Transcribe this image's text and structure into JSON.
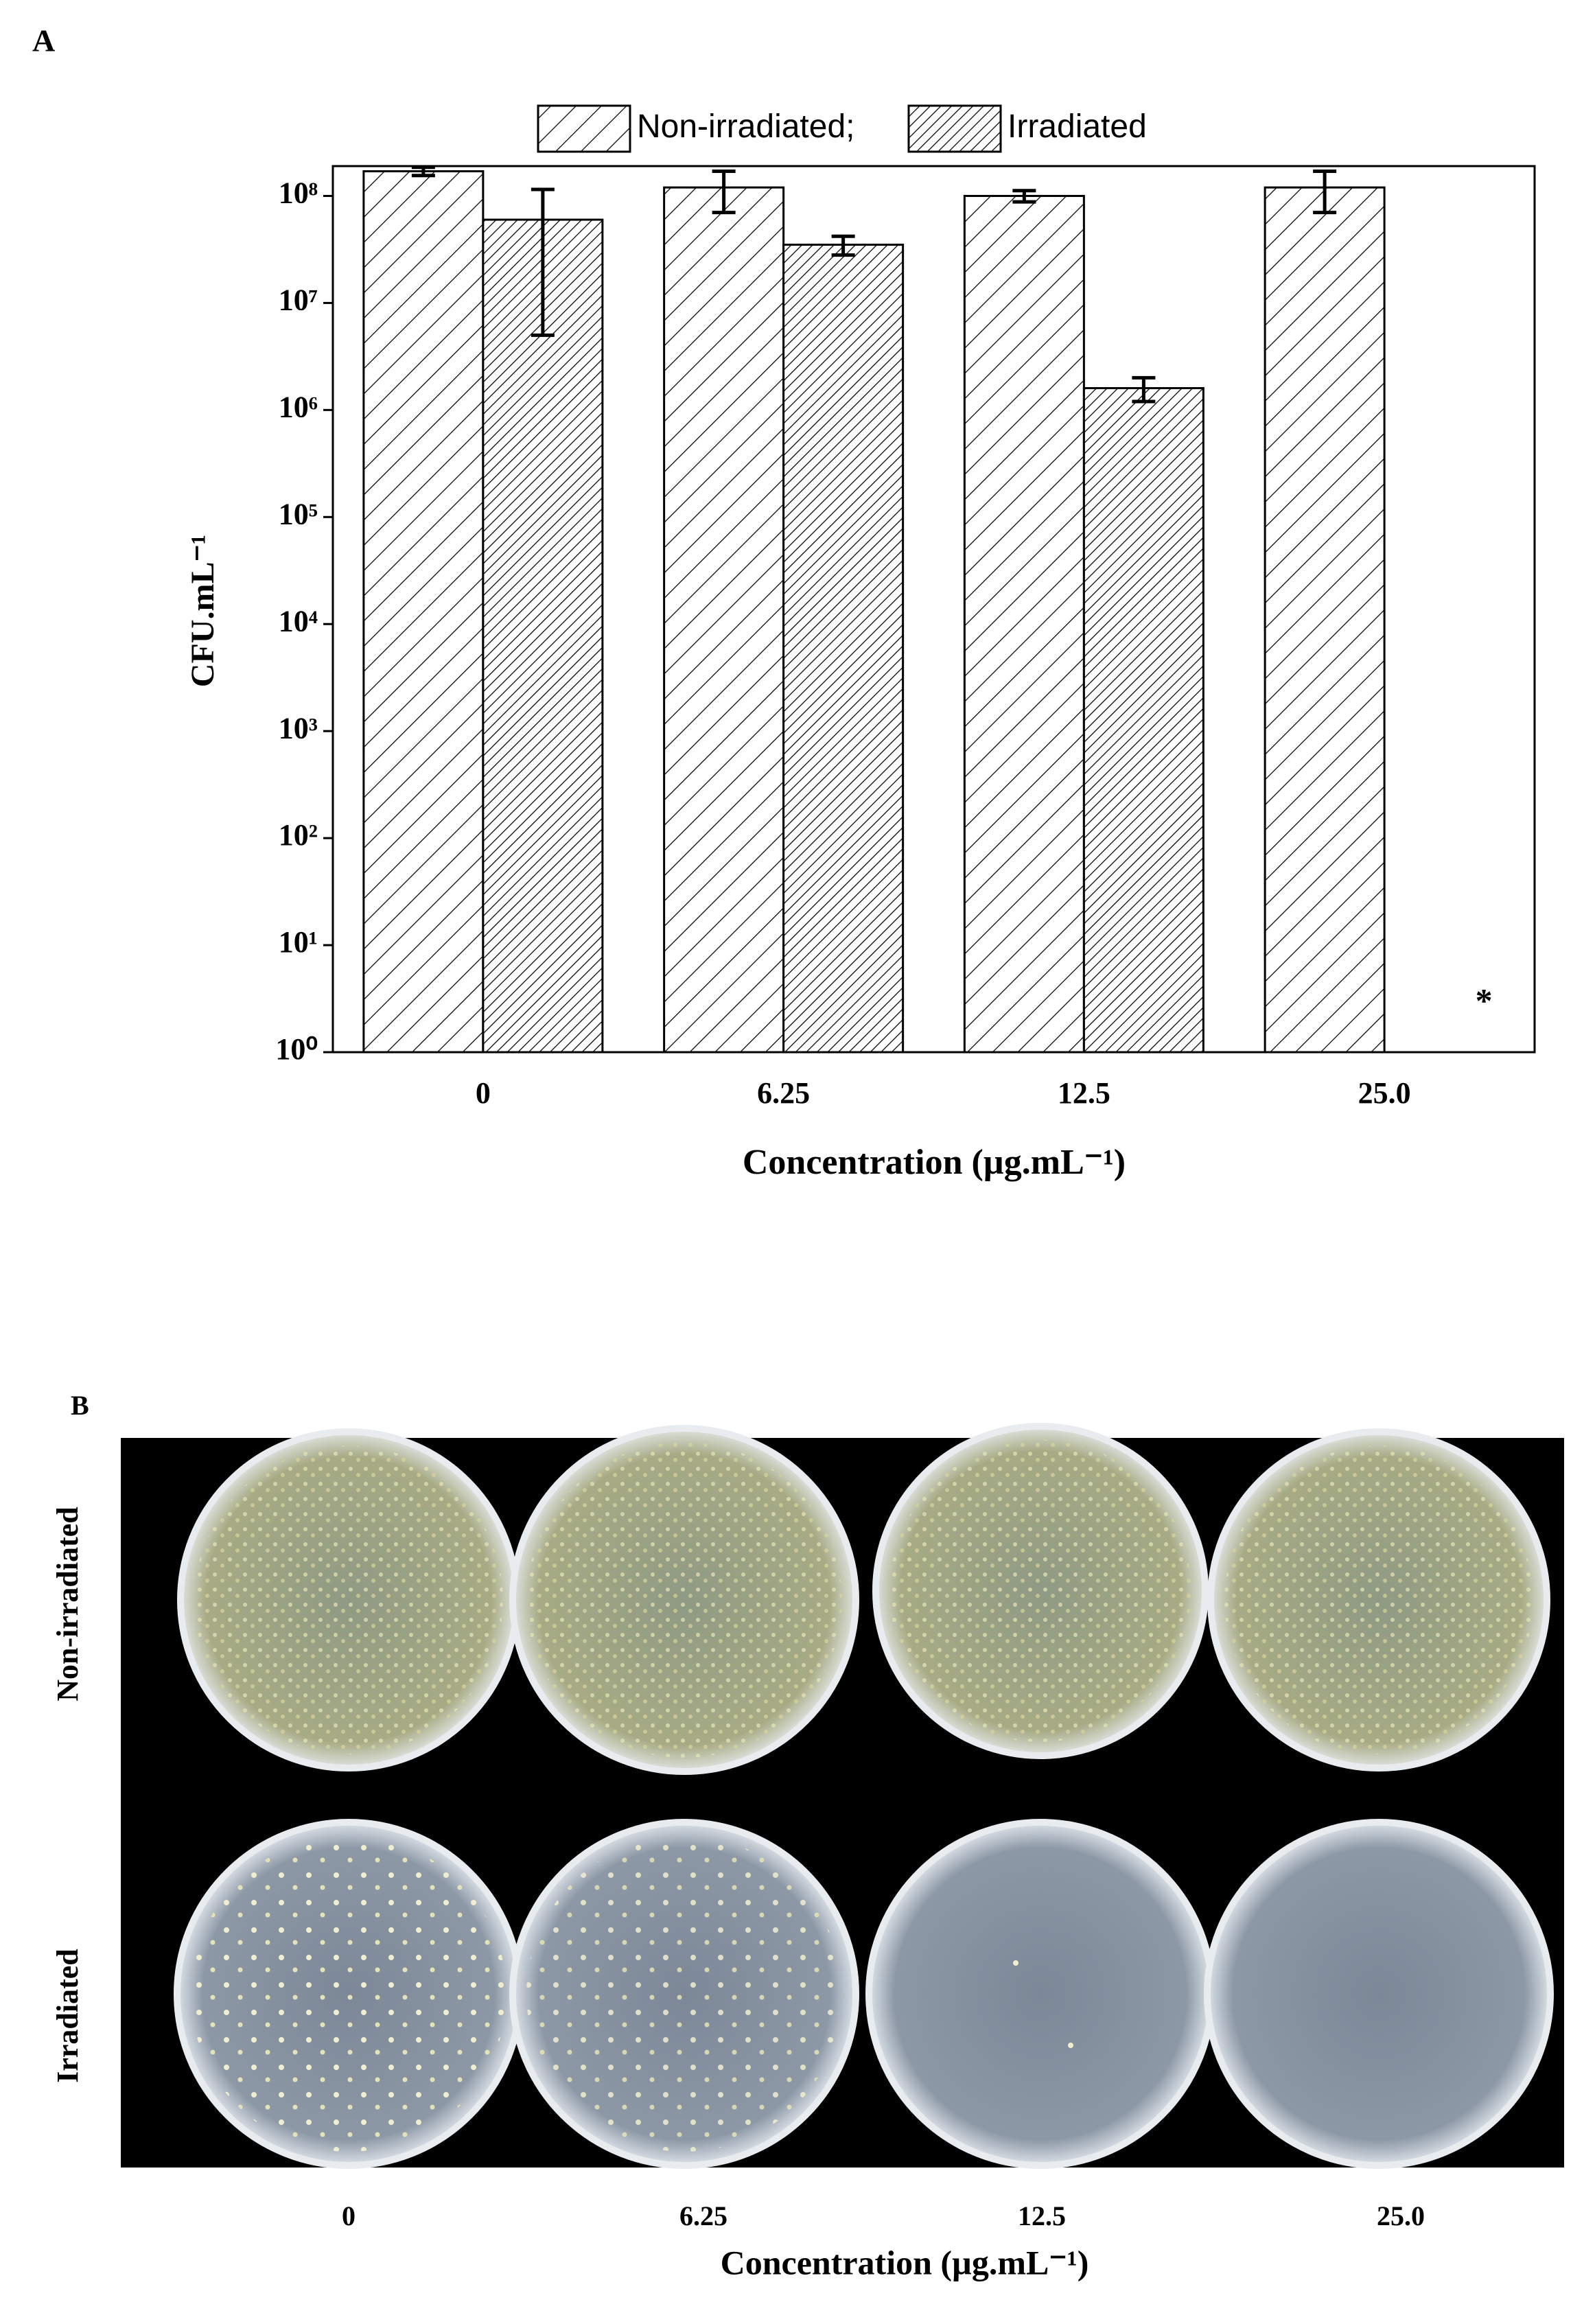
{
  "chart_data": {
    "type": "bar",
    "panel_label": "A",
    "x_label": "Concentration (µg.mL⁻¹)",
    "y_label": "CFU.mL⁻¹",
    "categories": [
      "0",
      "6.25",
      "12.5",
      "25.0"
    ],
    "series": [
      {
        "name": "Non-irradiated;",
        "color": "#000000",
        "hatch": "sparse",
        "values": [
          170000000,
          120000000,
          100000000,
          120000000
        ],
        "errors": [
          15000000,
          50000000,
          12000000,
          50000000
        ]
      },
      {
        "name": "Irradiated",
        "color": "#000000",
        "hatch": "dense",
        "values": [
          60000000,
          35000000,
          1600000,
          null
        ],
        "errors": [
          55000000,
          7000000,
          400000,
          null
        ]
      }
    ],
    "annotation": "*",
    "log_scale": true,
    "legend": "top",
    "ylim": [
      1,
      190000000
    ],
    "yticks": [
      {
        "value": 1,
        "label": "10⁰"
      },
      {
        "value": 10,
        "label": "10¹"
      },
      {
        "value": 100,
        "label": "10²"
      },
      {
        "value": 1000,
        "label": "10³"
      },
      {
        "value": 10000,
        "label": "10⁴"
      },
      {
        "value": 100000,
        "label": "10⁵"
      },
      {
        "value": 1000000,
        "label": "10⁶"
      },
      {
        "value": 10000000,
        "label": "10⁷"
      },
      {
        "value": 100000000,
        "label": "10⁸"
      }
    ]
  },
  "panel_b": {
    "label": "B",
    "rows": [
      "Non-irradiated",
      "Irradiated"
    ],
    "categories": [
      "0",
      "6.25",
      "12.5",
      "25.0"
    ],
    "x_label": "Concentration (µg.mL⁻¹)"
  }
}
